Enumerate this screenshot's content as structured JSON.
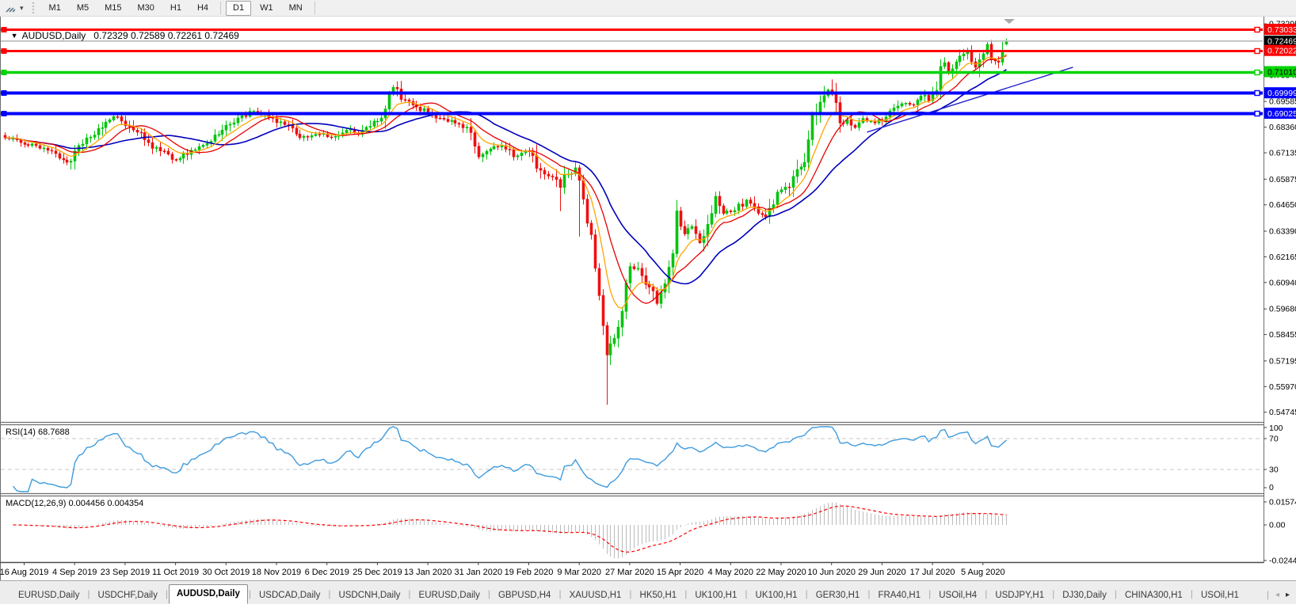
{
  "toolbar": {
    "tool_icon": "draw-tool",
    "timeframe_groups": [
      [
        "M1",
        "M5",
        "M15",
        "M30",
        "H1",
        "H4"
      ],
      [
        "D1",
        "W1",
        "MN"
      ]
    ],
    "active_timeframe": "D1"
  },
  "chart": {
    "dropdown_triangle": "▼",
    "title_symbol": "AUDUSD,Daily",
    "title_ohlc": "0.72329 0.72589 0.72261 0.72469"
  },
  "rsi_panel": {
    "label": "RSI(14) 68.7688"
  },
  "macd_panel": {
    "label": "MACD(12,26,9) 0.004456 0.004354"
  },
  "tabs": {
    "items": [
      "EURUSD,Daily",
      "USDCHF,Daily",
      "AUDUSD,Daily",
      "USDCAD,Daily",
      "USDCNH,Daily",
      "EURUSD,Daily",
      "GBPUSD,H4",
      "XAUUSD,H1",
      "HK50,H1",
      "UK100,H1",
      "UK100,H1",
      "GER30,H1",
      "FRA40,H1",
      "USOil,H4",
      "USDJPY,H1",
      "DJ30,Daily",
      "CHINA300,H1",
      "USOil,H1"
    ],
    "active_index": 2,
    "scroll_left": "◂",
    "scroll_right": "▸",
    "separator": "|"
  },
  "chart_data": {
    "type": "candlestick",
    "symbol": "AUDUSD",
    "period": "Daily",
    "last_candle": {
      "open": 0.72329,
      "high": 0.72589,
      "low": 0.72261,
      "close": 0.72469
    },
    "current_price": 0.72469,
    "candle_count": 259,
    "visible_price_range": {
      "top": 0.736,
      "bottom": 0.5428
    },
    "close_anchors": [
      [
        0,
        0.6785
      ],
      [
        4,
        0.6762
      ],
      [
        8,
        0.6748
      ],
      [
        12,
        0.6722
      ],
      [
        16,
        0.6668
      ],
      [
        18,
        0.6722
      ],
      [
        22,
        0.6788
      ],
      [
        26,
        0.686
      ],
      [
        29,
        0.6886
      ],
      [
        33,
        0.6822
      ],
      [
        37,
        0.6762
      ],
      [
        40,
        0.6722
      ],
      [
        44,
        0.668
      ],
      [
        48,
        0.6726
      ],
      [
        52,
        0.6758
      ],
      [
        56,
        0.6822
      ],
      [
        60,
        0.688
      ],
      [
        64,
        0.6912
      ],
      [
        68,
        0.6882
      ],
      [
        72,
        0.6848
      ],
      [
        76,
        0.6786
      ],
      [
        80,
        0.6802
      ],
      [
        84,
        0.6788
      ],
      [
        88,
        0.6822
      ],
      [
        91,
        0.6802
      ],
      [
        94,
        0.684
      ],
      [
        97,
        0.688
      ],
      [
        100,
        0.7026
      ],
      [
        103,
        0.6966
      ],
      [
        106,
        0.6932
      ],
      [
        109,
        0.6906
      ],
      [
        113,
        0.6874
      ],
      [
        117,
        0.685
      ],
      [
        120,
        0.681
      ],
      [
        122,
        0.6694
      ],
      [
        125,
        0.6732
      ],
      [
        128,
        0.6748
      ],
      [
        131,
        0.6694
      ],
      [
        134,
        0.6722
      ],
      [
        136,
        0.67
      ],
      [
        138,
        0.663
      ],
      [
        141,
        0.6598
      ],
      [
        143,
        0.6548
      ],
      [
        145,
        0.6612
      ],
      [
        147,
        0.6642
      ],
      [
        148,
        0.6582
      ],
      [
        149,
        0.6492
      ],
      [
        151,
        0.6322
      ],
      [
        153,
        0.6032
      ],
      [
        154,
        0.5888
      ],
      [
        155,
        0.5748
      ],
      [
        156,
        0.5802
      ],
      [
        157,
        0.5828
      ],
      [
        159,
        0.5956
      ],
      [
        161,
        0.617
      ],
      [
        163,
        0.6162
      ],
      [
        166,
        0.6072
      ],
      [
        168,
        0.5994
      ],
      [
        170,
        0.6088
      ],
      [
        172,
        0.6232
      ],
      [
        173,
        0.6436
      ],
      [
        175,
        0.6326
      ],
      [
        177,
        0.6362
      ],
      [
        179,
        0.6284
      ],
      [
        181,
        0.6372
      ],
      [
        183,
        0.6506
      ],
      [
        185,
        0.6424
      ],
      [
        188,
        0.6438
      ],
      [
        191,
        0.6488
      ],
      [
        194,
        0.6424
      ],
      [
        196,
        0.6408
      ],
      [
        199,
        0.6526
      ],
      [
        202,
        0.6548
      ],
      [
        204,
        0.6634
      ],
      [
        206,
        0.6668
      ],
      [
        208,
        0.6894
      ],
      [
        210,
        0.6956
      ],
      [
        212,
        0.7014
      ],
      [
        213,
        0.6998
      ],
      [
        215,
        0.6856
      ],
      [
        217,
        0.6872
      ],
      [
        219,
        0.6834
      ],
      [
        221,
        0.6878
      ],
      [
        224,
        0.6856
      ],
      [
        226,
        0.6866
      ],
      [
        228,
        0.6914
      ],
      [
        231,
        0.6948
      ],
      [
        234,
        0.6942
      ],
      [
        236,
        0.6984
      ],
      [
        238,
        0.6962
      ],
      [
        240,
        0.7012
      ],
      [
        241,
        0.7126
      ],
      [
        242,
        0.7144
      ],
      [
        243,
        0.7098
      ],
      [
        245,
        0.7148
      ],
      [
        247,
        0.7186
      ],
      [
        248,
        0.7196
      ],
      [
        249,
        0.7148
      ],
      [
        250,
        0.7122
      ],
      [
        251,
        0.7158
      ],
      [
        252,
        0.7186
      ],
      [
        253,
        0.7232
      ],
      [
        254,
        0.7158
      ],
      [
        255,
        0.7152
      ],
      [
        256,
        0.7146
      ],
      [
        257,
        0.7192
      ],
      [
        258,
        0.72469
      ]
    ],
    "wick_overrides": {
      "16": {
        "low": 0.6654
      },
      "44": {
        "low": 0.6671
      },
      "122": {
        "low": 0.6683
      },
      "143": {
        "low": 0.6435
      },
      "148": {
        "low": 0.6313
      },
      "155": {
        "low": 0.551
      },
      "213": {
        "high": 0.7064
      },
      "249": {
        "high": 0.7227
      },
      "253": {
        "high": 0.7243
      },
      "258": {
        "open": 0.72329,
        "high": 0.72589,
        "low": 0.72261,
        "close": 0.72469
      }
    },
    "moving_averages": [
      {
        "name": "fast",
        "type": "ema",
        "period": 8,
        "color": "#FFA500"
      },
      {
        "name": "mid",
        "type": "sma",
        "period": 13,
        "color": "#E60000"
      },
      {
        "name": "slow",
        "type": "sma",
        "period": 25,
        "color": "#0000BB"
      }
    ],
    "trendline": {
      "i1": 222,
      "p1": 0.6812,
      "i2": 275,
      "p2": 0.7122,
      "color": "#2222CC"
    },
    "horizontal_lines": [
      {
        "price": 0.73033,
        "color": "#FF0000",
        "width": 3
      },
      {
        "price": 0.72022,
        "color": "#FF0000",
        "width": 3
      },
      {
        "price": 0.7101,
        "color": "#00D400",
        "width": 3.5
      },
      {
        "price": 0.69999,
        "color": "#0000FF",
        "width": 4
      },
      {
        "price": 0.69025,
        "color": "#0000FF",
        "width": 4
      }
    ],
    "price_axis": {
      "ticks": [
        "0.73295",
        "0.70845",
        "0.69585",
        "0.68360",
        "0.67135",
        "0.65875",
        "0.64650",
        "0.63390",
        "0.62165",
        "0.60940",
        "0.59680",
        "0.58455",
        "0.57195",
        "0.55970",
        "0.54745"
      ],
      "badges": [
        {
          "text": "0.73033",
          "bg": "#FF0000",
          "fg": "#FFFFFF"
        },
        {
          "text": "0.72469",
          "bg": "#000000",
          "fg": "#FFFFFF"
        },
        {
          "text": "0.72022",
          "bg": "#FF0000",
          "fg": "#FFFFFF"
        },
        {
          "text": "0.71010",
          "bg": "#00D400",
          "fg": "#000000"
        },
        {
          "text": "0.69999",
          "bg": "#0000FF",
          "fg": "#FFFFFF"
        },
        {
          "text": "0.69025",
          "bg": "#0000FF",
          "fg": "#FFFFFF"
        }
      ]
    },
    "date_axis": {
      "labels": [
        "16 Aug 2019",
        "4 Sep 2019",
        "23 Sep 2019",
        "11 Oct 2019",
        "30 Oct 2019",
        "18 Nov 2019",
        "6 Dec 2019",
        "25 Dec 2019",
        "13 Jan 2020",
        "31 Jan 2020",
        "19 Feb 2020",
        "9 Mar 2020",
        "27 Mar 2020",
        "15 Apr 2020",
        "4 May 2020",
        "22 May 2020",
        "10 Jun 2020",
        "29 Jun 2020",
        "17 Jul 2020",
        "5 Aug 2020"
      ],
      "first_label_candle": 5,
      "candles_per_label": 13
    },
    "rsi": {
      "period": 14,
      "value": 68.7688,
      "levels": [
        100,
        70,
        30,
        0
      ],
      "color": "#3E9BDE"
    },
    "macd": {
      "fast": 12,
      "slow": 26,
      "signal_period": 9,
      "values": [
        0.004456,
        0.004354
      ],
      "axis_ticks": [
        {
          "text": "0.015741",
          "value": 0.015741
        },
        {
          "text": "0.00",
          "value": 0
        },
        {
          "text": "-0.024417",
          "value": -0.024417
        }
      ],
      "hist_color": "#BBBBBB",
      "signal_color": "#FF0000"
    },
    "colors": {
      "up": "#00C40E",
      "down": "#EE1111",
      "current_line": "#BDBDBD",
      "rsi_level_dash": "#C8C8C8"
    }
  }
}
